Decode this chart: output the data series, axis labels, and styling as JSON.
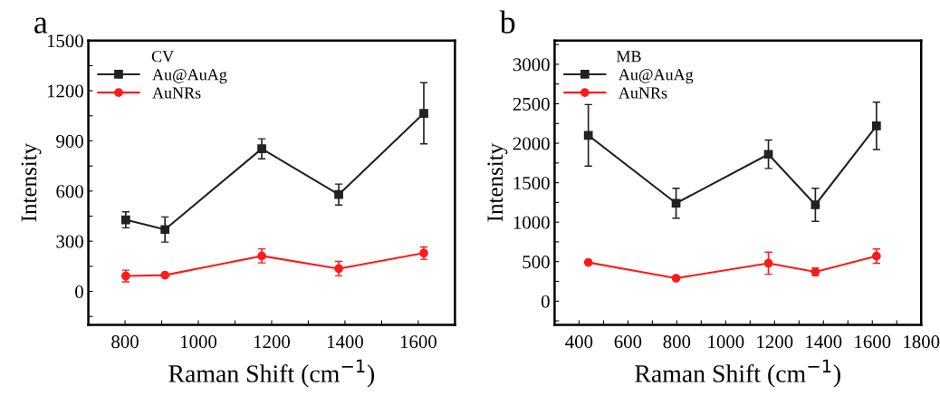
{
  "chart_data": [
    {
      "type": "line",
      "title": "a",
      "xlabel": "Raman Shift (cm$^{−1}$)",
      "ylabel": "Intensity",
      "legend_title": "CV",
      "legend": "top left",
      "line_style": "solid",
      "xlim": [
        700,
        1700
      ],
      "xticks": [
        800,
        {
          "value": 900,
          "label": null
        },
        1000,
        {
          "value": 1100,
          "label": null
        },
        1200,
        {
          "value": 1300,
          "label": null
        },
        1400,
        {
          "value": 1500,
          "label": null
        },
        1600
      ],
      "ylim": [
        -200,
        1500
      ],
      "yticks": [
        {
          "value": -150,
          "label": null
        },
        0,
        {
          "value": 150,
          "label": null
        },
        300,
        {
          "value": 450,
          "label": null
        },
        600,
        {
          "value": 750,
          "label": null
        },
        900,
        {
          "value": 1050,
          "label": null
        },
        1200,
        {
          "value": 1350,
          "label": null
        },
        1500
      ],
      "series": [
        {
          "name": "Au@AuAg",
          "color": "#222222",
          "marker": "square",
          "x": [
            802,
            909,
            1173,
            1383,
            1615
          ],
          "values": [
            428,
            370,
            853,
            579,
            1065
          ],
          "errors": [
            48,
            75,
            60,
            63,
            183
          ]
        },
        {
          "name": "AuNRs",
          "color": "#ff1a1a",
          "marker": "circle",
          "x": [
            802,
            909,
            1173,
            1383,
            1615
          ],
          "values": [
            92,
            97,
            212,
            136,
            229
          ],
          "errors": [
            35,
            8,
            42,
            43,
            37
          ]
        }
      ]
    },
    {
      "type": "line",
      "title": "b",
      "xlabel": "Raman Shift (cm$^{−1}$)",
      "ylabel": "Intensity",
      "legend_title": "MB",
      "legend": "top left",
      "line_style": "solid",
      "xlim": [
        300,
        1800
      ],
      "xticks": [
        400,
        {
          "value": 500,
          "label": null
        },
        600,
        {
          "value": 700,
          "label": null
        },
        800,
        {
          "value": 900,
          "label": null
        },
        1000,
        {
          "value": 1100,
          "label": null
        },
        1200,
        {
          "value": 1300,
          "label": null
        },
        1400,
        {
          "value": 1500,
          "label": null
        },
        1600,
        {
          "value": 1700,
          "label": null
        },
        1800
      ],
      "ylim": [
        -300,
        3300
      ],
      "yticks": [
        {
          "value": -250,
          "label": null
        },
        0,
        {
          "value": 250,
          "label": null
        },
        500,
        {
          "value": 750,
          "label": null
        },
        1000,
        {
          "value": 1250,
          "label": null
        },
        1500,
        {
          "value": 1750,
          "label": null
        },
        2000,
        {
          "value": 2250,
          "label": null
        },
        2500,
        {
          "value": 2750,
          "label": null
        },
        3000,
        {
          "value": 3250,
          "label": null
        }
      ],
      "series": [
        {
          "name": "Au@AuAg",
          "color": "#222222",
          "marker": "square",
          "x": [
            438,
            797,
            1175,
            1367,
            1617
          ],
          "values": [
            2100,
            1240,
            1860,
            1220,
            2220
          ],
          "errors": [
            390,
            190,
            180,
            210,
            300
          ]
        },
        {
          "name": "AuNRs",
          "color": "#ff1a1a",
          "marker": "circle",
          "x": [
            438,
            797,
            1175,
            1367,
            1617
          ],
          "values": [
            490,
            290,
            480,
            370,
            570
          ],
          "errors": [
            null,
            null,
            140,
            50,
            90
          ]
        }
      ]
    }
  ]
}
